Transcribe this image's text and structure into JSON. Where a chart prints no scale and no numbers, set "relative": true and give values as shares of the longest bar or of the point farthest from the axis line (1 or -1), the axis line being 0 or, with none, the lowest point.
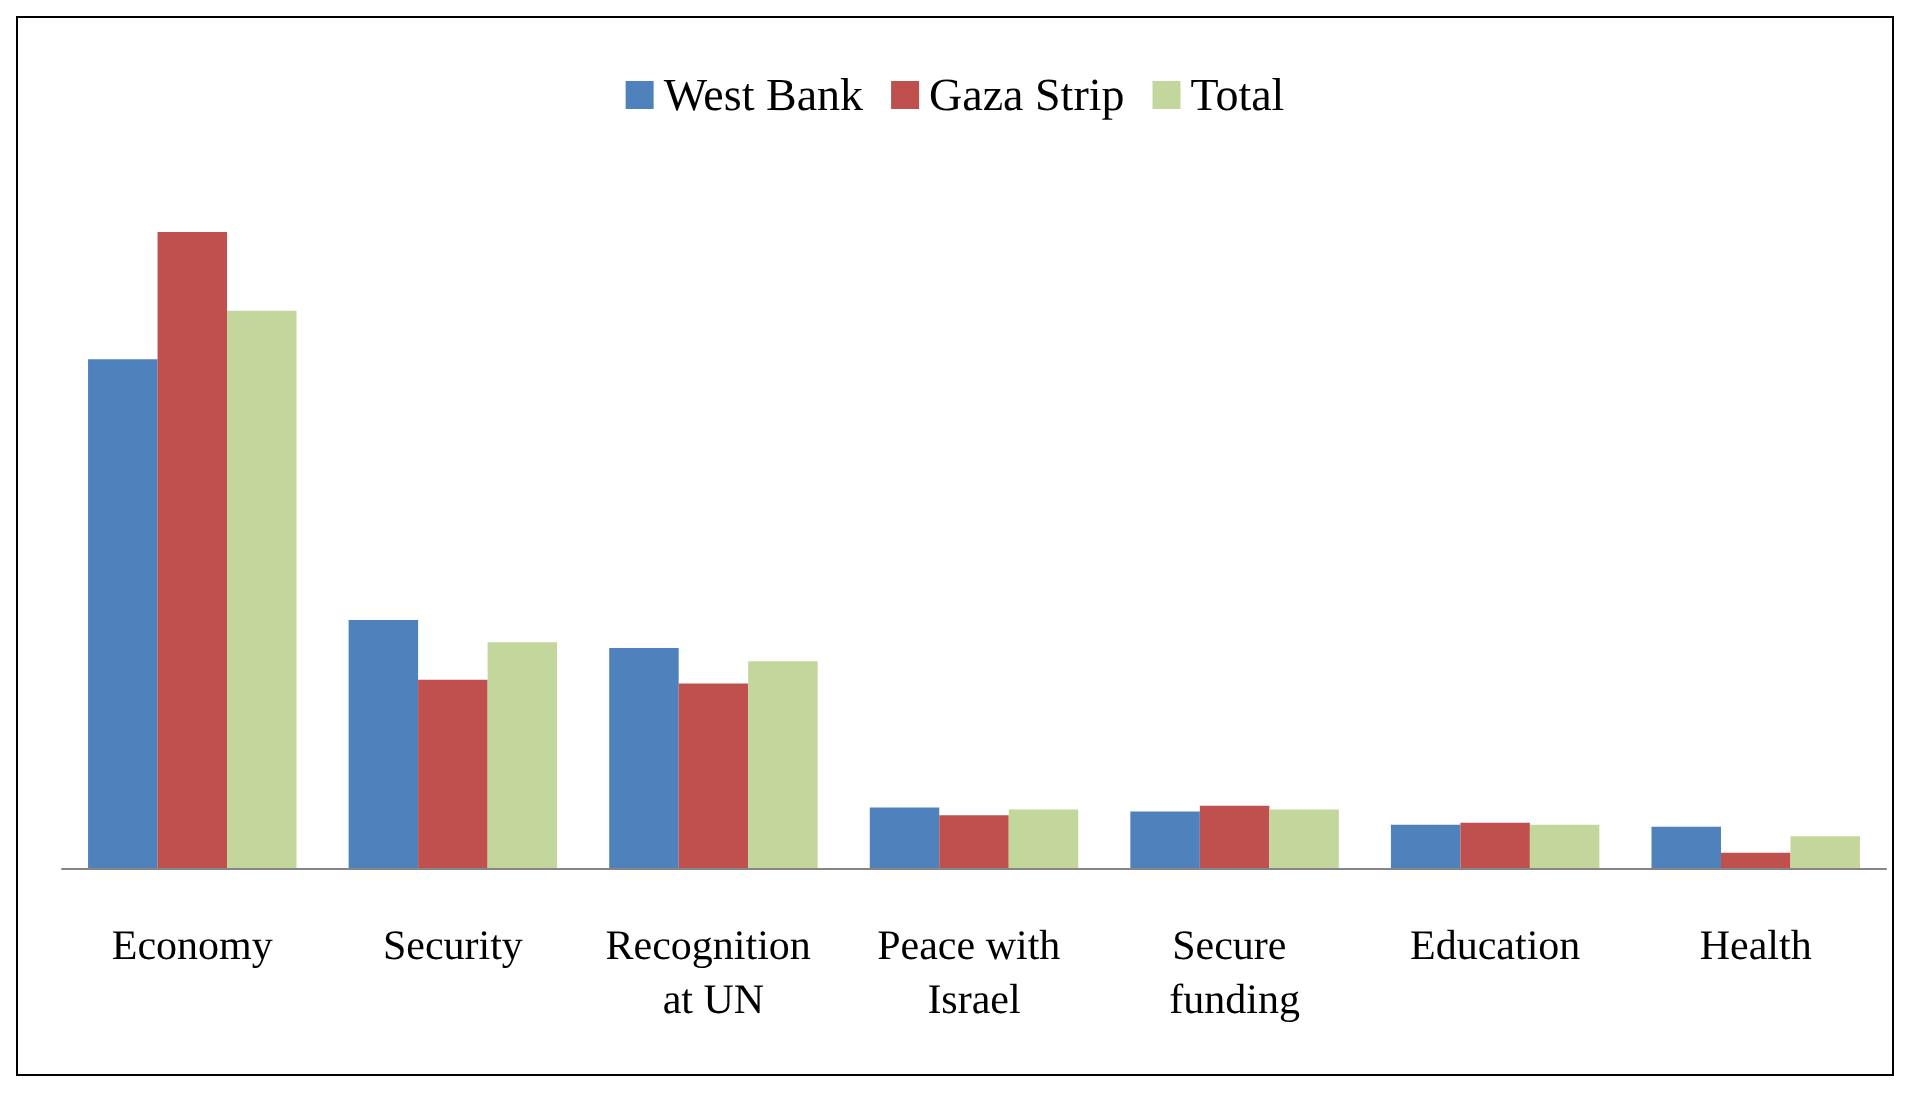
{
  "chart_data": {
    "type": "bar",
    "relative": true,
    "legend": "top",
    "categories": [
      "Economy",
      "Security",
      "Recognition at UN",
      "Peace with Israel",
      "Secure funding",
      "Education",
      "Health"
    ],
    "series": [
      {
        "name": "West Bank",
        "color": "#4f81bd",
        "values": [
          0.8,
          0.39,
          0.346,
          0.095,
          0.089,
          0.068,
          0.065
        ]
      },
      {
        "name": "Gaza Strip",
        "color": "#c0504d",
        "values": [
          1,
          0.296,
          0.29,
          0.083,
          0.098,
          0.071,
          0.024
        ]
      },
      {
        "name": "Total",
        "color": "#c3d69b",
        "values": [
          0.876,
          0.355,
          0.325,
          0.092,
          0.092,
          0.068,
          0.05
        ]
      }
    ]
  }
}
